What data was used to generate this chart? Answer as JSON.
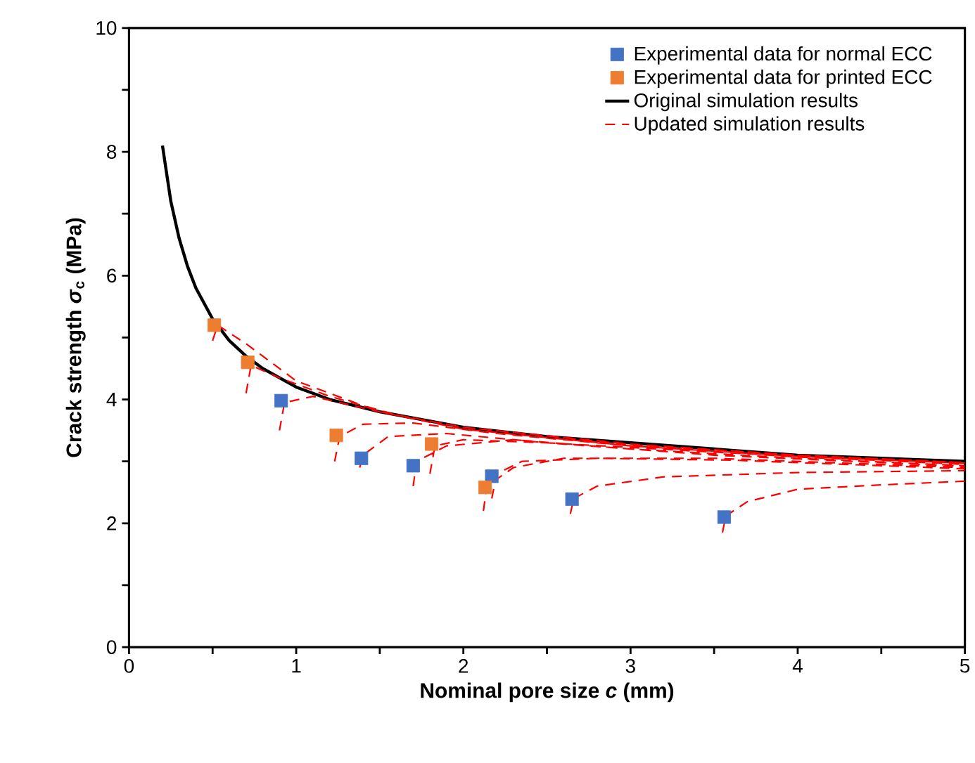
{
  "chart_data": {
    "type": "scatter",
    "xlabel": "Nominal pore size *c* (mm)",
    "ylabel": "Crack strength *σ*$_{c}$ (MPa)",
    "xlim": [
      0,
      5
    ],
    "ylim": [
      0,
      10
    ],
    "xticks": [
      0,
      {
        "value": 0.5,
        "label": null
      },
      1,
      {
        "value": 1.5,
        "label": null
      },
      2,
      {
        "value": 2.5,
        "label": null
      },
      3,
      {
        "value": 3.5,
        "label": null
      },
      4,
      {
        "value": 4.5,
        "label": null
      },
      5
    ],
    "yticks": [
      0,
      {
        "value": 1,
        "label": null
      },
      2,
      {
        "value": 3,
        "label": null
      },
      4,
      {
        "value": 5,
        "label": null
      },
      6,
      {
        "value": 7,
        "label": null
      },
      8,
      {
        "value": 9,
        "label": null
      },
      10
    ],
    "legend": "top right",
    "series": [
      {
        "name": "Experimental data for normal ECC",
        "marker": "square",
        "color": "#4472c4",
        "x": [
          0.91,
          1.39,
          1.7,
          2.17,
          2.65,
          3.56
        ],
        "values": [
          3.98,
          3.05,
          2.93,
          2.76,
          2.39,
          2.1
        ]
      },
      {
        "name": "Experimental data for printed ECC",
        "marker": "square",
        "color": "#ed7d31",
        "x": [
          0.51,
          0.71,
          1.24,
          1.81,
          2.13
        ],
        "values": [
          5.2,
          4.6,
          3.42,
          3.28,
          2.58
        ]
      },
      {
        "name": "Original simulation results",
        "type": "line",
        "line_style": "solid",
        "color": "#000000",
        "x": [
          0.2,
          0.25,
          0.3,
          0.35,
          0.4,
          0.5,
          0.6,
          0.7,
          0.8,
          1.0,
          1.2,
          1.5,
          2.0,
          2.5,
          3.0,
          3.5,
          4.0,
          4.5,
          5.0
        ],
        "values": [
          8.1,
          7.2,
          6.6,
          6.15,
          5.8,
          5.3,
          4.95,
          4.7,
          4.5,
          4.2,
          4.0,
          3.8,
          3.55,
          3.4,
          3.3,
          3.2,
          3.1,
          3.05,
          3.0
        ]
      },
      {
        "name": "Updated simulation results",
        "type": "line",
        "line_style": "dashed",
        "color": "#ff0000",
        "x": [
          0.5,
          0.53,
          0.7,
          1.0,
          1.5,
          2.0,
          3.0,
          4.0,
          5.0,
          null,
          0.7,
          0.73,
          0.9,
          1.2,
          1.6,
          2.0,
          3.0,
          4.0,
          5.0,
          null,
          0.9,
          0.93,
          1.1,
          1.5,
          2.0,
          3.0,
          4.0,
          5.0,
          null,
          1.23,
          1.26,
          1.4,
          1.7,
          2.2,
          3.0,
          4.0,
          5.0,
          null,
          1.38,
          1.4,
          1.55,
          1.9,
          2.5,
          3.5,
          5.0,
          null,
          1.7,
          1.72,
          1.9,
          2.3,
          3.0,
          4.0,
          5.0,
          null,
          1.8,
          1.83,
          2.0,
          2.5,
          3.5,
          5.0,
          null,
          2.12,
          2.14,
          2.3,
          2.6,
          3.5,
          5.0,
          null,
          2.17,
          2.2,
          2.35,
          2.8,
          3.6,
          5.0,
          null,
          2.64,
          2.66,
          2.8,
          3.2,
          4.0,
          5.0,
          null,
          3.55,
          3.57,
          3.7,
          4.0,
          4.5,
          5.0
        ],
        "values": [
          4.95,
          5.2,
          4.9,
          4.3,
          3.8,
          3.55,
          3.28,
          3.1,
          2.98,
          null,
          4.1,
          4.55,
          4.35,
          4.05,
          3.75,
          3.55,
          3.27,
          3.1,
          2.98,
          null,
          3.5,
          3.95,
          4.05,
          3.8,
          3.52,
          3.25,
          3.08,
          2.97,
          null,
          3.0,
          3.4,
          3.6,
          3.62,
          3.45,
          3.25,
          3.07,
          2.96,
          null,
          2.9,
          3.1,
          3.4,
          3.45,
          3.3,
          3.15,
          2.95,
          null,
          2.6,
          3.0,
          3.25,
          3.35,
          3.2,
          3.05,
          2.93,
          null,
          2.8,
          3.25,
          3.35,
          3.3,
          3.1,
          2.92,
          null,
          2.2,
          2.6,
          2.9,
          3.05,
          3.05,
          2.9,
          null,
          2.4,
          2.8,
          3.0,
          3.05,
          3.02,
          2.88,
          null,
          2.15,
          2.4,
          2.6,
          2.75,
          2.82,
          2.85,
          null,
          1.85,
          2.12,
          2.35,
          2.55,
          2.62,
          2.68
        ]
      }
    ]
  }
}
